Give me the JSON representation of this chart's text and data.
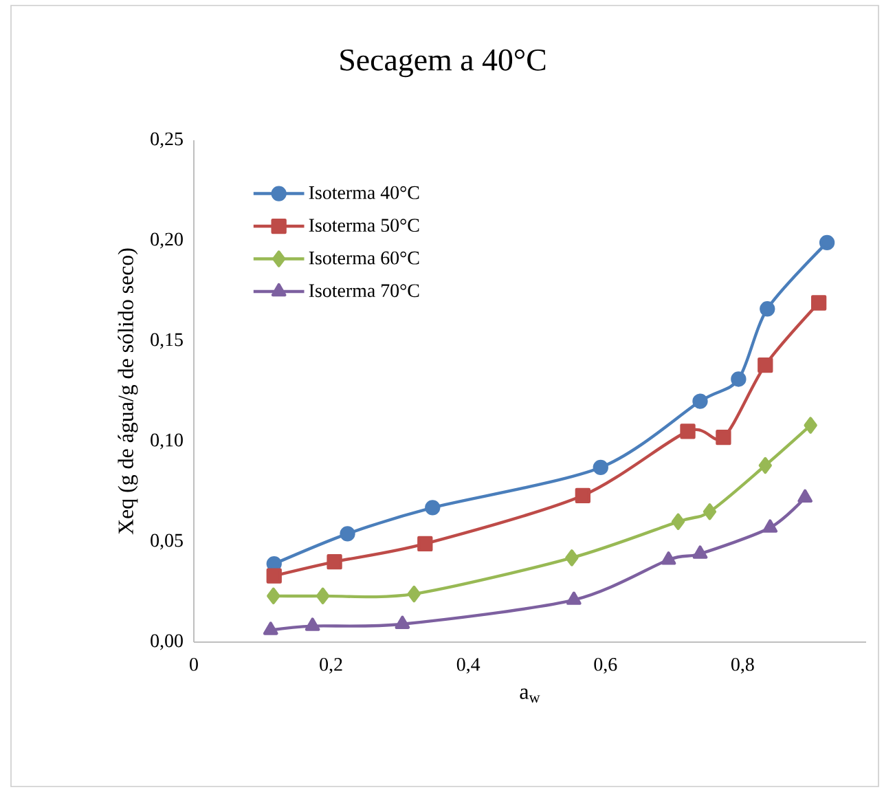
{
  "chart_data": {
    "type": "line",
    "title": "Secagem a 40°C",
    "xlabel": "a$_{w}$",
    "ylabel": "Xeq (g de água/g de sólido seco)",
    "xlim": [
      0,
      0.98
    ],
    "ylim": [
      0,
      0.25
    ],
    "xticks": [
      {
        "value": 0,
        "label": "0"
      },
      {
        "value": 0.2,
        "label": "0,2"
      },
      {
        "value": 0.4,
        "label": "0,4"
      },
      {
        "value": 0.6,
        "label": "0,6"
      },
      {
        "value": 0.8,
        "label": "0,8"
      }
    ],
    "yticks": [
      {
        "value": 0,
        "label": "0,00"
      },
      {
        "value": 0.05,
        "label": "0,05"
      },
      {
        "value": 0.1,
        "label": "0,10"
      },
      {
        "value": 0.15,
        "label": "0,15"
      },
      {
        "value": 0.2,
        "label": "0,20"
      },
      {
        "value": 0.25,
        "label": "0,25"
      }
    ],
    "grid": false,
    "legend": "top left",
    "series": [
      {
        "name": "Isoterma 40°C",
        "color": "#4a7ebb",
        "marker": "circle",
        "x": [
          0.117,
          0.224,
          0.348,
          0.593,
          0.738,
          0.794,
          0.836,
          0.923
        ],
        "values": [
          0.039,
          0.054,
          0.067,
          0.087,
          0.12,
          0.131,
          0.166,
          0.199
        ]
      },
      {
        "name": "Isoterma 50°C",
        "color": "#be4b48",
        "marker": "square",
        "x": [
          0.117,
          0.205,
          0.337,
          0.567,
          0.72,
          0.772,
          0.833,
          0.911
        ],
        "values": [
          0.033,
          0.04,
          0.049,
          0.073,
          0.105,
          0.102,
          0.138,
          0.169
        ]
      },
      {
        "name": "Isoterma 60°C",
        "color": "#98b954",
        "marker": "diamond",
        "x": [
          0.116,
          0.188,
          0.321,
          0.551,
          0.706,
          0.752,
          0.833,
          0.899
        ],
        "values": [
          0.023,
          0.023,
          0.024,
          0.042,
          0.06,
          0.065,
          0.088,
          0.108
        ]
      },
      {
        "name": "Isoterma 70°C",
        "color": "#7d60a0",
        "marker": "triangle",
        "x": [
          0.112,
          0.173,
          0.304,
          0.554,
          0.692,
          0.738,
          0.84,
          0.891
        ],
        "values": [
          0.006,
          0.008,
          0.009,
          0.021,
          0.041,
          0.044,
          0.057,
          0.072
        ]
      }
    ]
  }
}
